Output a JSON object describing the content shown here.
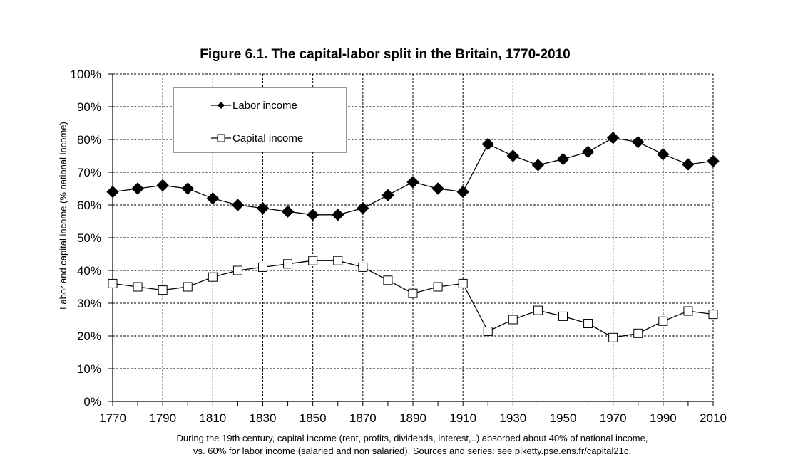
{
  "chart_data": {
    "type": "line",
    "title": "Figure 6.1. The capital-labor split in the Britain, 1770-2010",
    "xlabel": "",
    "ylabel": "Labor and capital income (% national income)",
    "x": [
      1770,
      1780,
      1790,
      1800,
      1810,
      1820,
      1830,
      1840,
      1850,
      1860,
      1870,
      1880,
      1890,
      1900,
      1910,
      1920,
      1930,
      1940,
      1950,
      1960,
      1970,
      1980,
      1990,
      2000,
      2010
    ],
    "xlim": [
      1770,
      2010
    ],
    "x_ticks": [
      1770,
      1790,
      1810,
      1830,
      1850,
      1870,
      1890,
      1910,
      1930,
      1950,
      1970,
      1990,
      2010
    ],
    "ylim": [
      0,
      1
    ],
    "y_ticks": [
      0,
      0.1,
      0.2,
      0.3,
      0.4,
      0.5,
      0.6,
      0.7,
      0.8,
      0.9,
      1.0
    ],
    "y_tick_labels": [
      "0%",
      "10%",
      "20%",
      "30%",
      "40%",
      "50%",
      "60%",
      "70%",
      "80%",
      "90%",
      "100%"
    ],
    "grid": true,
    "legend_position": "top-left",
    "series": [
      {
        "name": "Labor income",
        "marker": "filled-diamond",
        "color": "#000000",
        "values": [
          0.64,
          0.65,
          0.66,
          0.65,
          0.62,
          0.6,
          0.59,
          0.58,
          0.57,
          0.57,
          0.59,
          0.63,
          0.67,
          0.65,
          0.64,
          0.786,
          0.75,
          0.722,
          0.74,
          0.762,
          0.805,
          0.792,
          0.755,
          0.724,
          0.734
        ]
      },
      {
        "name": "Capital income",
        "marker": "open-square",
        "color": "#000000",
        "values": [
          0.36,
          0.35,
          0.34,
          0.35,
          0.38,
          0.4,
          0.41,
          0.42,
          0.43,
          0.43,
          0.41,
          0.37,
          0.33,
          0.35,
          0.36,
          0.214,
          0.25,
          0.278,
          0.26,
          0.238,
          0.195,
          0.208,
          0.245,
          0.276,
          0.266
        ]
      }
    ],
    "annotations": [
      "During the 19th century, capital income (rent, profits, dividends, interest,..) absorbed about 40% of national income,",
      "vs. 60% for labor income (salaried and non salaried). Sources and series: see piketty.pse.ens.fr/capital21c."
    ]
  }
}
